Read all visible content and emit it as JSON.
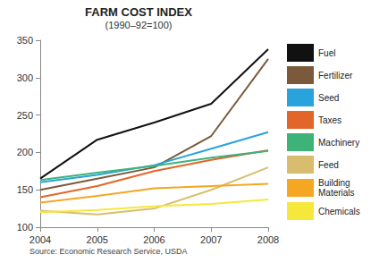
{
  "chart_data": {
    "type": "line",
    "title": "FARM COST INDEX",
    "subtitle": "(1990–92=100)",
    "source": "Source: Economic Research Service, USDA",
    "categories": [
      "2004",
      "2005",
      "2006",
      "2007",
      "2008"
    ],
    "series": [
      {
        "name": "Fuel",
        "color": "#111111",
        "values": [
          165,
          217,
          240,
          265,
          338
        ]
      },
      {
        "name": "Fertilizer",
        "color": "#7a5a3a",
        "values": [
          150,
          165,
          180,
          222,
          325
        ]
      },
      {
        "name": "Seed",
        "color": "#29a3dc",
        "values": [
          160,
          170,
          183,
          205,
          227
        ]
      },
      {
        "name": "Taxes",
        "color": "#e2662a",
        "values": [
          140,
          155,
          175,
          190,
          203
        ]
      },
      {
        "name": "Machinery",
        "color": "#3db37a",
        "values": [
          163,
          173,
          182,
          193,
          202
        ]
      },
      {
        "name": "Feed",
        "color": "#d9bd6e",
        "values": [
          122,
          117,
          125,
          150,
          180
        ]
      },
      {
        "name": "Building Materials",
        "color": "#f5a623",
        "values": [
          133,
          142,
          152,
          155,
          158
        ]
      },
      {
        "name": "Chemicals",
        "color": "#f5e83a",
        "values": [
          120,
          123,
          128,
          131,
          137
        ]
      }
    ],
    "ylim": [
      100,
      350
    ],
    "yticks": [
      100,
      150,
      200,
      250,
      300,
      350
    ],
    "grid": false,
    "legend": "right"
  }
}
